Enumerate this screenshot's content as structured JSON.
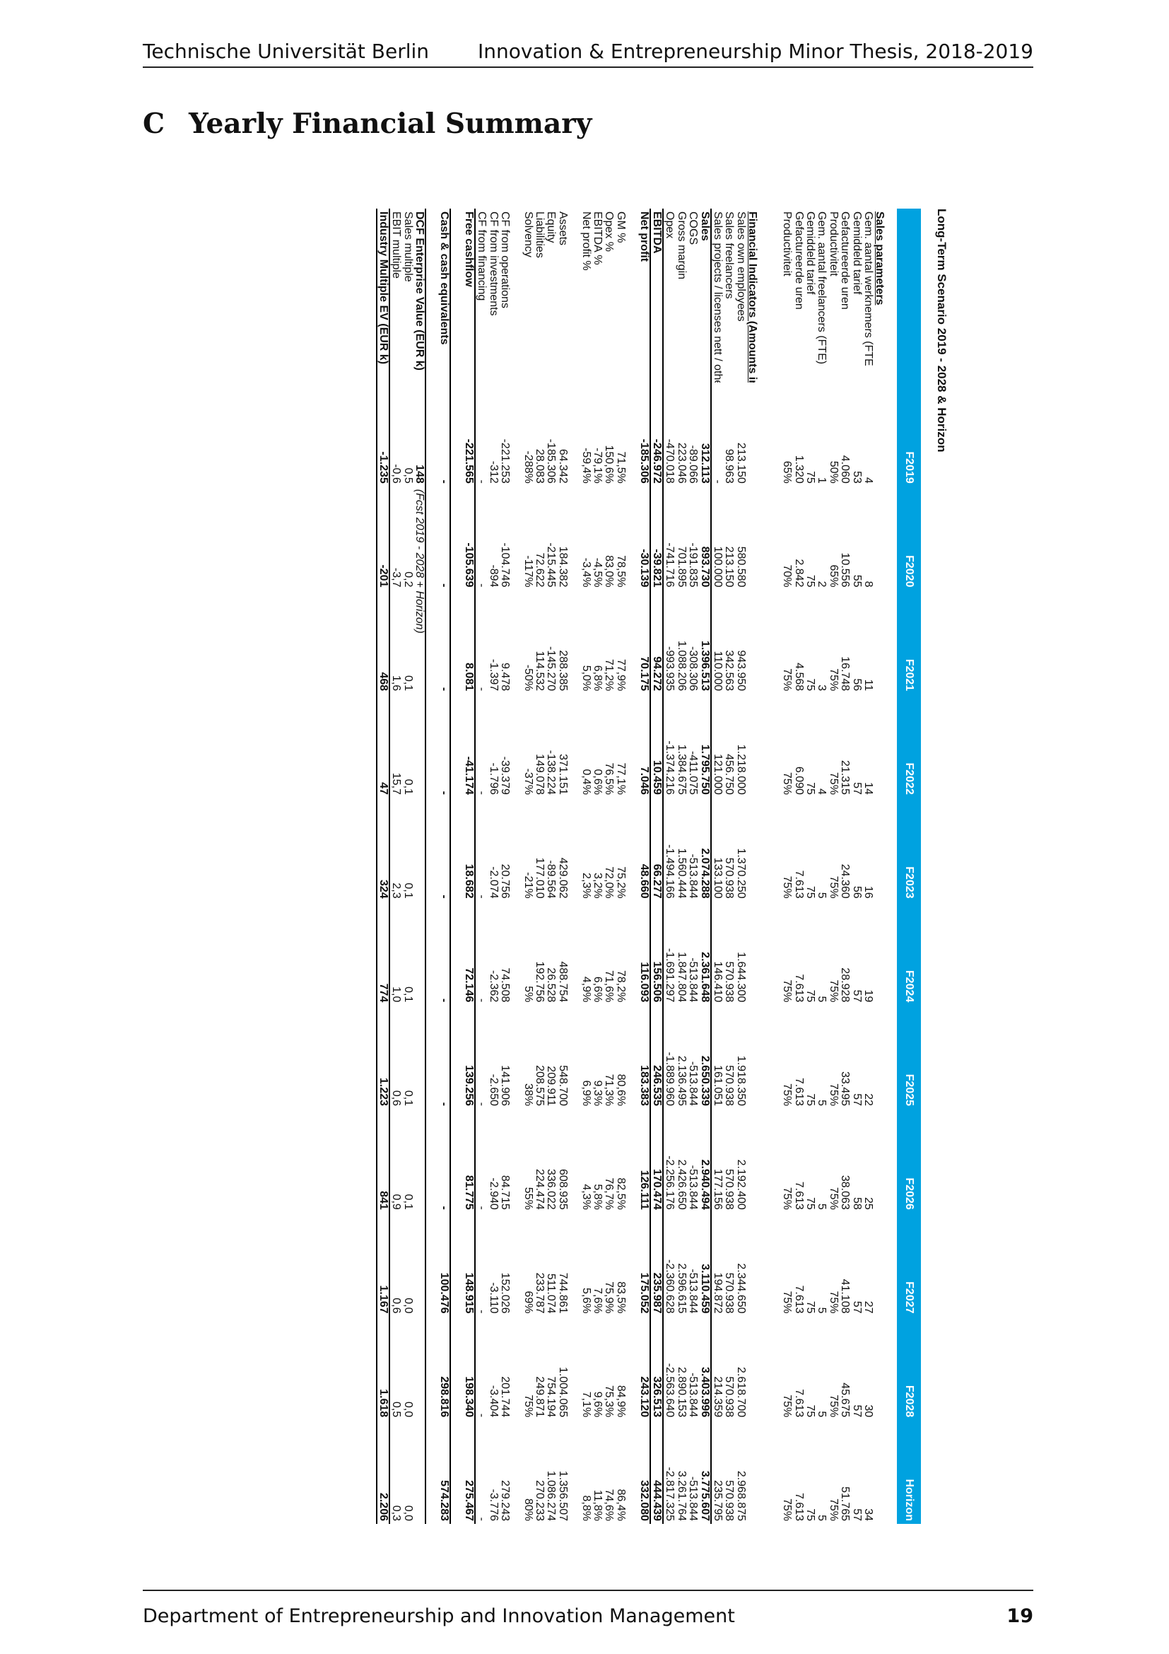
{
  "header": {
    "left": "Technische Universität Berlin",
    "right": "Innovation & Entrepreneurship Minor Thesis,  2018-2019"
  },
  "section": {
    "number": "C",
    "title": "Yearly Financial Summary"
  },
  "table": {
    "title": "Long-Term Scenario 2019 - 2028 & Horizon",
    "columns": [
      "F2019",
      "F2020",
      "F2021",
      "F2022",
      "F2023",
      "F2024",
      "F2025",
      "F2026",
      "F2027",
      "F2028",
      "Horizon"
    ],
    "rows": [
      {
        "type": "spacer"
      },
      {
        "type": "section",
        "label": "Sales parameters"
      },
      {
        "label": "Gem. aantal werknemers (FTE",
        "values": [
          "4",
          "8",
          "11",
          "14",
          "16",
          "19",
          "22",
          "25",
          "27",
          "30",
          "34"
        ]
      },
      {
        "label": "Gemiddeld tarief",
        "values": [
          "53",
          "55",
          "56",
          "57",
          "56",
          "57",
          "57",
          "58",
          "57",
          "57",
          "57"
        ]
      },
      {
        "label": "Gefactureerde uren",
        "values": [
          "4.060",
          "10.556",
          "16.748",
          "21.315",
          "24.360",
          "28.928",
          "33.495",
          "38.063",
          "41.108",
          "45.675",
          "51.765"
        ]
      },
      {
        "label": "Productiviteit",
        "values": [
          "50%",
          "65%",
          "75%",
          "75%",
          "75%",
          "75%",
          "75%",
          "75%",
          "75%",
          "75%",
          "75%"
        ]
      },
      {
        "label": "Gem. aantal freelancers (FTE)",
        "values": [
          "1",
          "2",
          "3",
          "4",
          "5",
          "5",
          "5",
          "5",
          "5",
          "5",
          "5"
        ]
      },
      {
        "label": "Gemiddeld tarief",
        "values": [
          "75",
          "75",
          "75",
          "75",
          "75",
          "75",
          "75",
          "75",
          "75",
          "75",
          "75"
        ]
      },
      {
        "label": "Gefactureerde uren",
        "values": [
          "1.320",
          "2.842",
          "4.568",
          "6.090",
          "7.613",
          "7.613",
          "7.613",
          "7.613",
          "7.613",
          "7.613",
          "7.613"
        ]
      },
      {
        "label": "Productiviteit",
        "values": [
          "65%",
          "70%",
          "75%",
          "75%",
          "75%",
          "75%",
          "75%",
          "75%",
          "75%",
          "75%",
          "75%"
        ]
      },
      {
        "type": "spacer"
      },
      {
        "type": "spacer"
      },
      {
        "type": "section",
        "label": "Financial Indicators (Amounts in EUR)"
      },
      {
        "label": "Sales own employees",
        "values": [
          "213.150",
          "580.580",
          "943.950",
          "1.218.000",
          "1.370.250",
          "1.644.300",
          "1.918.350",
          "2.192.400",
          "2.344.650",
          "2.618.700",
          "2.968.875"
        ]
      },
      {
        "label": "Sales freelancers",
        "values": [
          "98.963",
          "213.150",
          "342.563",
          "456.750",
          "570.938",
          "570.938",
          "570.938",
          "570.938",
          "570.938",
          "570.938",
          "570.938"
        ]
      },
      {
        "label": "Sales projects / licenses nett / other",
        "values": [
          "-",
          "100.000",
          "110.000",
          "121.000",
          "133.100",
          "146.410",
          "161.051",
          "177.156",
          "194.872",
          "214.359",
          "235.795"
        ]
      },
      {
        "type": "bold",
        "label": "Sales",
        "values": [
          "312.113",
          "893.730",
          "1.396.513",
          "1.795.750",
          "2.074.288",
          "2.361.648",
          "2.650.339",
          "2.940.494",
          "3.110.459",
          "3.403.996",
          "3.775.607"
        ]
      },
      {
        "label": "COGS",
        "values": [
          "-89.066",
          "-191.835",
          "-308.306",
          "-411.075",
          "-513.844",
          "-513.844",
          "-513.844",
          "-513.844",
          "-513.844",
          "-513.844",
          "-513.844"
        ]
      },
      {
        "label": "Gross margin",
        "values": [
          "223.046",
          "701.895",
          "1.088.206",
          "1.384.675",
          "1.560.444",
          "1.847.804",
          "2.136.495",
          "2.426.650",
          "2.596.615",
          "2.890.153",
          "3.261.764"
        ]
      },
      {
        "label": "Opex",
        "values": [
          "-470.018",
          "-741.716",
          "-993.935",
          "-1.374.216",
          "-1.494.166",
          "-1.691.297",
          "-1.889.960",
          "-2.256.176",
          "-2.360.628",
          "-2.563.640",
          "-2.817.325"
        ]
      },
      {
        "type": "bold",
        "label": "EBITDA",
        "values": [
          "-246.972",
          "-39.821",
          "94.272",
          "10.459",
          "66.277",
          "156.506",
          "246.535",
          "170.474",
          "235.987",
          "326.513",
          "444.439"
        ]
      },
      {
        "type": "bold",
        "label": "Net profit",
        "values": [
          "-185.306",
          "-30.139",
          "70.175",
          "7.046",
          "48.660",
          "116.093",
          "183.383",
          "126.111",
          "175.052",
          "243.120",
          "332.080"
        ]
      },
      {
        "type": "spacer"
      },
      {
        "label": "GM %",
        "values": [
          "71,5%",
          "78,5%",
          "77,9%",
          "77,1%",
          "75,2%",
          "78,2%",
          "80,6%",
          "82,5%",
          "83,5%",
          "84,9%",
          "86,4%"
        ]
      },
      {
        "label": "Opex %",
        "values": [
          "150,6%",
          "83,0%",
          "71,2%",
          "76,5%",
          "72,0%",
          "71,6%",
          "71,3%",
          "76,7%",
          "75,9%",
          "75,3%",
          "74,6%"
        ]
      },
      {
        "label": "EBITDA %",
        "values": [
          "-79,1%",
          "-4,5%",
          "6,8%",
          "0,6%",
          "3,2%",
          "6,6%",
          "9,3%",
          "5,8%",
          "7,6%",
          "9,6%",
          "11,8%"
        ]
      },
      {
        "label": "Net profit %",
        "values": [
          "-59,4%",
          "-3,4%",
          "5,0%",
          "0,4%",
          "2,3%",
          "4,9%",
          "6,9%",
          "4,3%",
          "5,6%",
          "7,1%",
          "8,8%"
        ]
      },
      {
        "type": "spacer"
      },
      {
        "label": "Assets",
        "values": [
          "64.342",
          "184.382",
          "288.385",
          "371.151",
          "429.062",
          "488.754",
          "548.700",
          "608.935",
          "744.861",
          "1.004.065",
          "1.356.507"
        ]
      },
      {
        "label": "Equity",
        "values": [
          "-185.306",
          "-215.445",
          "-145.270",
          "-138.224",
          "-89.564",
          "26.528",
          "209.911",
          "336.022",
          "511.074",
          "754.194",
          "1.086.274"
        ]
      },
      {
        "label": "Liabilities",
        "values": [
          "28.083",
          "72.622",
          "114.532",
          "149.078",
          "177.010",
          "192.756",
          "208.575",
          "224.474",
          "233.787",
          "249.871",
          "270.233"
        ]
      },
      {
        "label": "Solvency",
        "values": [
          "-288%",
          "-117%",
          "-50%",
          "-37%",
          "-21%",
          "5%",
          "38%",
          "55%",
          "69%",
          "75%",
          "80%"
        ]
      },
      {
        "type": "spacer"
      },
      {
        "label": "CF from operations",
        "values": [
          "-221.253",
          "-104.746",
          "9.478",
          "-39.379",
          "20.756",
          "74.508",
          "141.906",
          "84.715",
          "152.026",
          "201.744",
          "279.243"
        ]
      },
      {
        "label": "CF from investments",
        "values": [
          "-312",
          "-894",
          "-1.397",
          "-1.796",
          "-2.074",
          "-2.362",
          "-2.650",
          "-2.940",
          "-3.110",
          "-3.404",
          "-3.776"
        ]
      },
      {
        "label": "CF from financing",
        "values": [
          "-",
          "-",
          "-",
          "-",
          "-",
          "-",
          "-",
          "-",
          "-",
          "-",
          "-"
        ]
      },
      {
        "type": "bold",
        "label": "Free cashflow",
        "values": [
          "-221.565",
          "-105.639",
          "8.081",
          "-41.174",
          "18.682",
          "72.146",
          "139.256",
          "81.775",
          "148.915",
          "198.340",
          "275.467"
        ]
      },
      {
        "type": "spacer"
      },
      {
        "type": "bold",
        "label": "Cash & cash equivalents",
        "values": [
          "-",
          "-",
          "-",
          "-",
          "-",
          "-",
          "-",
          "-",
          "100.476",
          "298.816",
          "574.283"
        ]
      },
      {
        "type": "spacer"
      },
      {
        "type": "dcf",
        "label": "DCF Enterprise Value (EUR k)",
        "value": "148",
        "note": "(Fcst 2019 - 2028 + Horizon)"
      },
      {
        "label": "Sales multiple",
        "values": [
          "0,5",
          "0,2",
          "0,1",
          "0,1",
          "0,1",
          "0,1",
          "0,1",
          "0,1",
          "0,0",
          "0,0",
          "0,0"
        ]
      },
      {
        "label": "EBIT multiple",
        "values": [
          "-0,6",
          "-3,7",
          "1,6",
          "15,7",
          "2,3",
          "1,0",
          "0,6",
          "0,9",
          "0,6",
          "0,5",
          "0,3"
        ]
      },
      {
        "type": "boldlast",
        "label": "Industry Multiple EV (EUR k)",
        "values": [
          "-1.235",
          "-201",
          "468",
          "47",
          "324",
          "774",
          "1.223",
          "841",
          "1.167",
          "1.618",
          "2.206"
        ]
      }
    ]
  },
  "footer": {
    "department": "Department of Entrepreneurship and Innovation Management",
    "page": "19"
  }
}
